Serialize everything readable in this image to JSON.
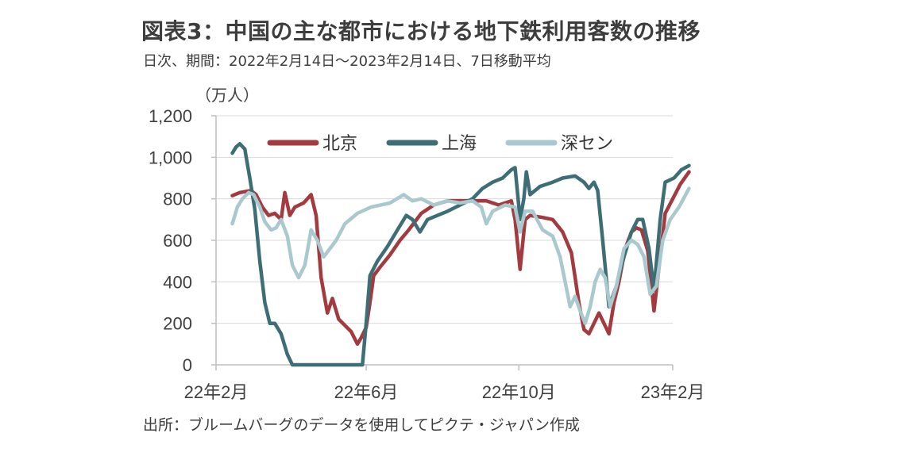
{
  "header": {
    "title": "図表3：中国の主な都市における地下鉄利用客数の推移",
    "subtitle": "日次、期間：2022年2月14日～2023年2月14日、7日移動平均"
  },
  "footer": {
    "source": "出所：ブルームバーグのデータを使用してピクテ・ジャパン作成"
  },
  "chart_data": {
    "type": "line",
    "unit_label": "（万人）",
    "ylim": [
      0,
      1200
    ],
    "yticks": [
      0,
      200,
      400,
      600,
      800,
      1000,
      1200
    ],
    "ytick_labels": [
      "0",
      "200",
      "400",
      "600",
      "800",
      "1,000",
      "1,200"
    ],
    "x_domain": [
      "2022-02-14",
      "2023-02-14"
    ],
    "xticks": [
      "2022-02-01",
      "2022-06-01",
      "2022-10-01",
      "2023-02-01"
    ],
    "xtick_labels": [
      "22年2月",
      "22年6月",
      "22年10月",
      "23年2月"
    ],
    "grid": "horizontal",
    "legend_position": "top",
    "series": [
      {
        "name": "北京",
        "color": "#a33a3f",
        "points": [
          [
            "2022-02-14",
            815
          ],
          [
            "2022-02-20",
            830
          ],
          [
            "2022-03-01",
            840
          ],
          [
            "2022-03-05",
            820
          ],
          [
            "2022-03-10",
            760
          ],
          [
            "2022-03-15",
            720
          ],
          [
            "2022-03-20",
            730
          ],
          [
            "2022-03-25",
            700
          ],
          [
            "2022-03-28",
            830
          ],
          [
            "2022-04-01",
            720
          ],
          [
            "2022-04-05",
            760
          ],
          [
            "2022-04-12",
            780
          ],
          [
            "2022-04-18",
            820
          ],
          [
            "2022-04-22",
            720
          ],
          [
            "2022-04-26",
            420
          ],
          [
            "2022-05-01",
            250
          ],
          [
            "2022-05-05",
            320
          ],
          [
            "2022-05-10",
            220
          ],
          [
            "2022-05-15",
            190
          ],
          [
            "2022-05-20",
            160
          ],
          [
            "2022-05-25",
            100
          ],
          [
            "2022-05-28",
            130
          ],
          [
            "2022-06-01",
            180
          ],
          [
            "2022-06-04",
            300
          ],
          [
            "2022-06-07",
            430
          ],
          [
            "2022-06-12",
            470
          ],
          [
            "2022-06-20",
            530
          ],
          [
            "2022-06-28",
            600
          ],
          [
            "2022-07-05",
            650
          ],
          [
            "2022-07-15",
            730
          ],
          [
            "2022-07-25",
            770
          ],
          [
            "2022-08-05",
            790
          ],
          [
            "2022-08-15",
            790
          ],
          [
            "2022-08-25",
            790
          ],
          [
            "2022-09-05",
            790
          ],
          [
            "2022-09-15",
            770
          ],
          [
            "2022-09-25",
            790
          ],
          [
            "2022-09-28",
            700
          ],
          [
            "2022-10-02",
            460
          ],
          [
            "2022-10-06",
            700
          ],
          [
            "2022-10-10",
            720
          ],
          [
            "2022-10-20",
            710
          ],
          [
            "2022-10-28",
            700
          ],
          [
            "2022-11-05",
            640
          ],
          [
            "2022-11-12",
            540
          ],
          [
            "2022-11-18",
            300
          ],
          [
            "2022-11-22",
            170
          ],
          [
            "2022-11-26",
            150
          ],
          [
            "2022-11-30",
            200
          ],
          [
            "2022-12-04",
            250
          ],
          [
            "2022-12-08",
            200
          ],
          [
            "2022-12-12",
            150
          ],
          [
            "2022-12-16",
            300
          ],
          [
            "2022-12-20",
            400
          ],
          [
            "2022-12-25",
            560
          ],
          [
            "2022-12-30",
            640
          ],
          [
            "2023-01-03",
            660
          ],
          [
            "2023-01-07",
            650
          ],
          [
            "2023-01-12",
            550
          ],
          [
            "2023-01-17",
            260
          ],
          [
            "2023-01-21",
            470
          ],
          [
            "2023-01-26",
            730
          ],
          [
            "2023-02-01",
            800
          ],
          [
            "2023-02-07",
            870
          ],
          [
            "2023-02-14",
            930
          ]
        ]
      },
      {
        "name": "上海",
        "color": "#3e6e75",
        "points": [
          [
            "2022-02-14",
            1020
          ],
          [
            "2022-02-17",
            1050
          ],
          [
            "2022-02-20",
            1065
          ],
          [
            "2022-02-24",
            1040
          ],
          [
            "2022-02-28",
            900
          ],
          [
            "2022-03-04",
            750
          ],
          [
            "2022-03-08",
            500
          ],
          [
            "2022-03-12",
            300
          ],
          [
            "2022-03-16",
            200
          ],
          [
            "2022-03-20",
            200
          ],
          [
            "2022-03-25",
            150
          ],
          [
            "2022-03-30",
            50
          ],
          [
            "2022-04-03",
            0
          ],
          [
            "2022-05-01",
            0
          ],
          [
            "2022-05-25",
            0
          ],
          [
            "2022-05-29",
            0
          ],
          [
            "2022-06-01",
            200
          ],
          [
            "2022-06-04",
            430
          ],
          [
            "2022-06-10",
            500
          ],
          [
            "2022-06-18",
            570
          ],
          [
            "2022-06-26",
            650
          ],
          [
            "2022-07-03",
            720
          ],
          [
            "2022-07-08",
            700
          ],
          [
            "2022-07-14",
            640
          ],
          [
            "2022-07-20",
            700
          ],
          [
            "2022-07-28",
            720
          ],
          [
            "2022-08-05",
            740
          ],
          [
            "2022-08-15",
            770
          ],
          [
            "2022-08-25",
            800
          ],
          [
            "2022-09-02",
            850
          ],
          [
            "2022-09-10",
            880
          ],
          [
            "2022-09-18",
            900
          ],
          [
            "2022-09-25",
            940
          ],
          [
            "2022-09-28",
            950
          ],
          [
            "2022-10-02",
            700
          ],
          [
            "2022-10-05",
            800
          ],
          [
            "2022-10-07",
            930
          ],
          [
            "2022-10-10",
            820
          ],
          [
            "2022-10-18",
            860
          ],
          [
            "2022-10-28",
            880
          ],
          [
            "2022-11-05",
            900
          ],
          [
            "2022-11-15",
            910
          ],
          [
            "2022-11-22",
            880
          ],
          [
            "2022-11-26",
            850
          ],
          [
            "2022-11-30",
            880
          ],
          [
            "2022-12-03",
            840
          ],
          [
            "2022-12-07",
            600
          ],
          [
            "2022-12-12",
            280
          ],
          [
            "2022-12-18",
            380
          ],
          [
            "2022-12-24",
            520
          ],
          [
            "2022-12-30",
            640
          ],
          [
            "2023-01-04",
            700
          ],
          [
            "2023-01-08",
            700
          ],
          [
            "2023-01-13",
            560
          ],
          [
            "2023-01-17",
            360
          ],
          [
            "2023-01-22",
            700
          ],
          [
            "2023-01-26",
            880
          ],
          [
            "2023-02-02",
            900
          ],
          [
            "2023-02-08",
            940
          ],
          [
            "2023-02-14",
            960
          ]
        ]
      },
      {
        "name": "深セン",
        "color": "#a9c9cf",
        "points": [
          [
            "2022-02-14",
            680
          ],
          [
            "2022-02-18",
            760
          ],
          [
            "2022-02-22",
            800
          ],
          [
            "2022-02-27",
            830
          ],
          [
            "2022-03-03",
            820
          ],
          [
            "2022-03-08",
            760
          ],
          [
            "2022-03-12",
            690
          ],
          [
            "2022-03-17",
            650
          ],
          [
            "2022-03-21",
            660
          ],
          [
            "2022-03-25",
            700
          ],
          [
            "2022-03-30",
            620
          ],
          [
            "2022-04-03",
            480
          ],
          [
            "2022-04-08",
            420
          ],
          [
            "2022-04-13",
            480
          ],
          [
            "2022-04-18",
            650
          ],
          [
            "2022-04-23",
            600
          ],
          [
            "2022-04-28",
            520
          ],
          [
            "2022-05-03",
            560
          ],
          [
            "2022-05-08",
            600
          ],
          [
            "2022-05-15",
            680
          ],
          [
            "2022-05-25",
            730
          ],
          [
            "2022-06-05",
            760
          ],
          [
            "2022-06-20",
            780
          ],
          [
            "2022-07-01",
            820
          ],
          [
            "2022-07-08",
            790
          ],
          [
            "2022-07-15",
            800
          ],
          [
            "2022-07-25",
            770
          ],
          [
            "2022-08-05",
            790
          ],
          [
            "2022-08-15",
            780
          ],
          [
            "2022-08-25",
            790
          ],
          [
            "2022-09-01",
            760
          ],
          [
            "2022-09-05",
            680
          ],
          [
            "2022-09-10",
            740
          ],
          [
            "2022-09-20",
            770
          ],
          [
            "2022-09-28",
            760
          ],
          [
            "2022-10-02",
            640
          ],
          [
            "2022-10-06",
            740
          ],
          [
            "2022-10-12",
            740
          ],
          [
            "2022-10-20",
            650
          ],
          [
            "2022-10-28",
            620
          ],
          [
            "2022-11-03",
            520
          ],
          [
            "2022-11-07",
            400
          ],
          [
            "2022-11-11",
            280
          ],
          [
            "2022-11-15",
            330
          ],
          [
            "2022-11-19",
            260
          ],
          [
            "2022-11-23",
            200
          ],
          [
            "2022-11-27",
            280
          ],
          [
            "2022-12-01",
            400
          ],
          [
            "2022-12-05",
            460
          ],
          [
            "2022-12-09",
            420
          ],
          [
            "2022-12-13",
            280
          ],
          [
            "2022-12-18",
            380
          ],
          [
            "2022-12-24",
            560
          ],
          [
            "2022-12-30",
            600
          ],
          [
            "2023-01-04",
            580
          ],
          [
            "2023-01-09",
            520
          ],
          [
            "2023-01-14",
            340
          ],
          [
            "2023-01-19",
            380
          ],
          [
            "2023-01-24",
            600
          ],
          [
            "2023-01-30",
            700
          ],
          [
            "2023-02-06",
            760
          ],
          [
            "2023-02-14",
            850
          ]
        ]
      }
    ]
  }
}
